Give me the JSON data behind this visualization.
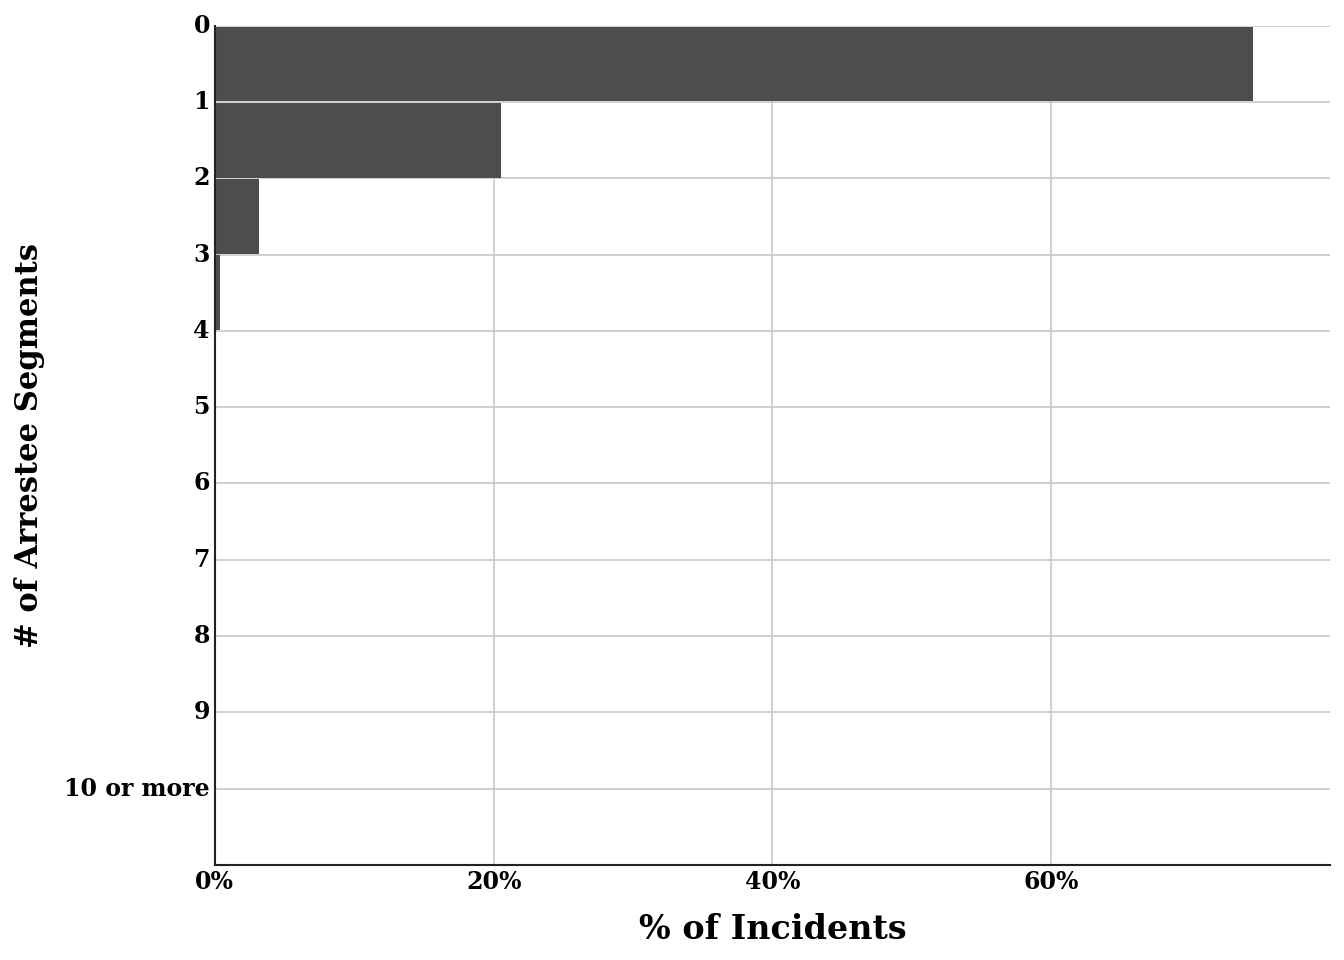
{
  "categories": [
    "0",
    "1",
    "2",
    "3",
    "4",
    "5",
    "6",
    "7",
    "8",
    "9",
    "10 or more"
  ],
  "values": [
    74.5,
    20.5,
    3.2,
    0.4,
    0.05,
    0.02,
    0.01,
    0.005,
    0.002,
    0.001,
    0.0
  ],
  "bar_color": "#4d4d4d",
  "xlabel": "% of Incidents",
  "ylabel": "# of Arrestee Segments",
  "xlim": [
    0,
    80
  ],
  "xticks": [
    0,
    20,
    40,
    60
  ],
  "xtick_labels": [
    "0%",
    "20%",
    "40%",
    "60%"
  ],
  "grid_color": "#c8c8c8",
  "background_color": "#ffffff",
  "xlabel_fontsize": 24,
  "ylabel_fontsize": 22,
  "ytick_fontsize": 17,
  "xtick_fontsize": 17,
  "bar_height": 0.98
}
